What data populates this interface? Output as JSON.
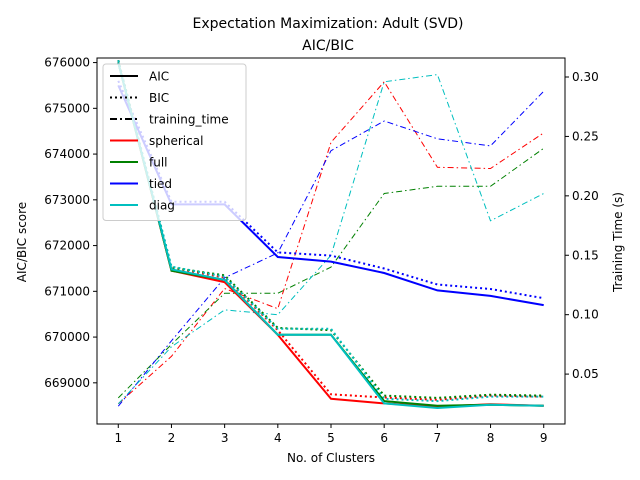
{
  "chart_data": {
    "type": "line",
    "title": "Expectation Maximization: Adult (SVD)",
    "subtitle": "AIC/BIC",
    "xlabel": "No. of Clusters",
    "ylabel": "AIC/BIC score",
    "y2label": "Training Time (s)",
    "x": [
      1,
      2,
      3,
      4,
      5,
      6,
      7,
      8,
      9
    ],
    "xticks": [
      "1",
      "2",
      "3",
      "4",
      "5",
      "6",
      "7",
      "8",
      "9"
    ],
    "ylim": [
      668100,
      676100
    ],
    "yticks": [
      669000,
      670000,
      671000,
      672000,
      673000,
      674000,
      675000,
      676000
    ],
    "ytick_labels": [
      "669000",
      "670000",
      "671000",
      "672000",
      "673000",
      "674000",
      "675000",
      "676000"
    ],
    "y2lim": [
      0.008,
      0.316
    ],
    "y2ticks": [
      0.05,
      0.1,
      0.15,
      0.2,
      0.25,
      0.3
    ],
    "y2tick_labels": [
      "0.05",
      "0.10",
      "0.15",
      "0.20",
      "0.25",
      "0.30"
    ],
    "grid": false,
    "legend_position": "top-left",
    "legend": [
      {
        "label": "AIC",
        "color": "#000000",
        "style": "solid"
      },
      {
        "label": "BIC",
        "color": "#000000",
        "style": "dotted"
      },
      {
        "label": "training_time",
        "color": "#000000",
        "style": "dashdot"
      },
      {
        "label": "spherical",
        "color": "#ff0000",
        "style": "solid"
      },
      {
        "label": "full",
        "color": "#008000",
        "style": "solid"
      },
      {
        "label": "tied",
        "color": "#0000ff",
        "style": "solid"
      },
      {
        "label": "diag",
        "color": "#00bfbf",
        "style": "solid"
      }
    ],
    "series": [
      {
        "name": "spherical",
        "color": "#ff0000",
        "aic": [
          676000,
          671450,
          671200,
          670050,
          668650,
          668550,
          668480,
          668530,
          668500
        ],
        "bic": [
          676050,
          671520,
          671300,
          670150,
          668750,
          668680,
          668630,
          668720,
          668700
        ],
        "time": [
          0.025,
          0.065,
          0.122,
          0.105,
          0.245,
          0.296,
          0.224,
          0.223,
          0.253
        ]
      },
      {
        "name": "full",
        "color": "#008000",
        "aic": [
          676000,
          671450,
          671250,
          670050,
          670050,
          668600,
          668500,
          668520,
          668500
        ],
        "bic": [
          676050,
          671520,
          671350,
          670200,
          670150,
          668720,
          668670,
          668740,
          668720
        ],
        "time": [
          0.03,
          0.075,
          0.118,
          0.118,
          0.14,
          0.202,
          0.208,
          0.208,
          0.24
        ]
      },
      {
        "name": "tied",
        "color": "#0000ff",
        "aic": [
          675500,
          672900,
          672900,
          671750,
          671650,
          671400,
          671020,
          670900,
          670700
        ],
        "bic": [
          675600,
          672960,
          672960,
          671850,
          671780,
          671500,
          671150,
          671050,
          670850
        ],
        "time": [
          0.023,
          0.078,
          0.131,
          0.152,
          0.238,
          0.263,
          0.248,
          0.242,
          0.288
        ]
      },
      {
        "name": "diag",
        "color": "#00bfbf",
        "aic": [
          676000,
          671480,
          671250,
          670050,
          670050,
          668550,
          668450,
          668520,
          668500
        ],
        "bic": [
          676050,
          671540,
          671320,
          670180,
          670180,
          668650,
          668600,
          668700,
          668700
        ],
        "time": [
          0.025,
          0.073,
          0.104,
          0.1,
          0.15,
          0.296,
          0.302,
          0.179,
          0.202
        ]
      }
    ]
  }
}
